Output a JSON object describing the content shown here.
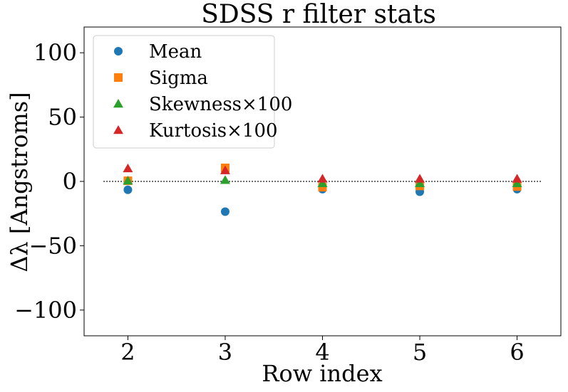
{
  "chart_data": {
    "type": "scatter",
    "title": "SDSS r filter stats",
    "xlabel": "Row index",
    "ylabel": "Δλ [Angstroms]",
    "xlim": [
      1.55,
      6.45
    ],
    "ylim": [
      -120,
      120
    ],
    "xticks": [
      2,
      3,
      4,
      5,
      6
    ],
    "yticks": [
      {
        "value": 100,
        "label": "100"
      },
      {
        "value": 50,
        "label": "50"
      },
      {
        "value": 0,
        "label": "0"
      },
      {
        "value": -50,
        "label": "−50"
      },
      {
        "value": -100,
        "label": "−100"
      }
    ],
    "reference_line": {
      "y": 0,
      "x_from": 1.75,
      "x_to": 6.25,
      "style": "dotted"
    },
    "legend_position": "upper-left",
    "grid": false,
    "x": [
      2,
      3,
      4,
      5,
      6
    ],
    "series": [
      {
        "name": "Mean",
        "marker": "circle",
        "color": "#1f77b4",
        "values": [
          -6.5,
          -23.5,
          -6,
          -8,
          -6
        ]
      },
      {
        "name": "Sigma",
        "marker": "square",
        "color": "#ff7f0e",
        "values": [
          0.5,
          10.5,
          -4.5,
          -3.5,
          -4
        ]
      },
      {
        "name": "Skewness×100",
        "marker": "triangle",
        "color": "#2ca02c",
        "values": [
          0.5,
          1,
          -1.5,
          -1.5,
          -1.5
        ]
      },
      {
        "name": "Kurtosis×100",
        "marker": "triangle",
        "color": "#d62728",
        "values": [
          10,
          8.5,
          2,
          2,
          2
        ]
      }
    ]
  }
}
